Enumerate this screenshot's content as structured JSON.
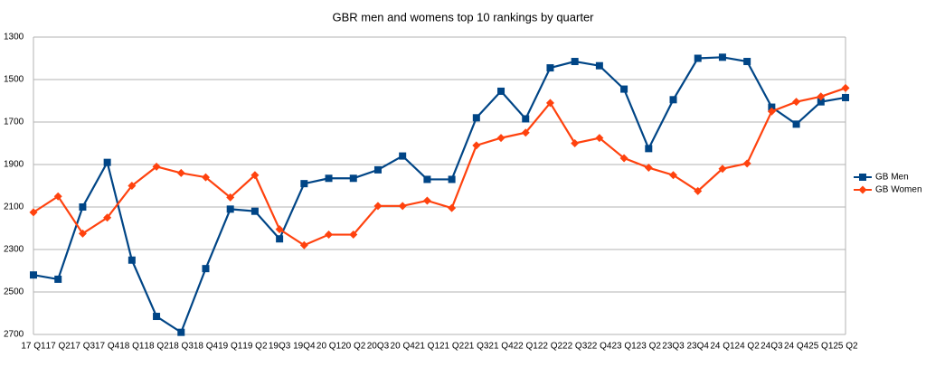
{
  "chart_data": {
    "type": "line",
    "title": "GBR men and womens top 10 rankings by quarter",
    "categories": [
      "17 Q1",
      "17 Q2",
      "17 Q3",
      "17 Q4",
      "18 Q1",
      "18 Q2",
      "18 Q3",
      "18 Q4",
      "19 Q1",
      "19 Q2",
      "19Q3",
      "19Q4",
      "20 Q1",
      "20 Q2",
      "20Q3",
      "20 Q4",
      "21 Q1",
      "21 Q2",
      "21 Q3",
      "21 Q4",
      "22 Q1",
      "22 Q2",
      "22 Q3",
      "22 Q4",
      "23 Q1",
      "23 Q2",
      "23Q3",
      "23Q4",
      "24 Q1",
      "24 Q2",
      "24Q3",
      "24 Q4",
      "25 Q1",
      "25 Q2"
    ],
    "series": [
      {
        "name": "GB Men",
        "color": "#004586",
        "marker": "square",
        "values": [
          2420,
          2440,
          2100,
          1890,
          2350,
          2615,
          2690,
          2390,
          2110,
          2120,
          2250,
          1990,
          1965,
          1965,
          1925,
          1860,
          1970,
          1970,
          1680,
          1555,
          1685,
          1445,
          1415,
          1435,
          1545,
          1825,
          1595,
          1400,
          1395,
          1415,
          1630,
          1710,
          1605,
          1585
        ]
      },
      {
        "name": "GB Women",
        "color": "#ff420e",
        "marker": "diamond",
        "values": [
          2125,
          2050,
          2225,
          2150,
          2000,
          1910,
          1940,
          1960,
          2055,
          1950,
          2205,
          2280,
          2230,
          2230,
          2095,
          2095,
          2070,
          2105,
          1810,
          1775,
          1750,
          1610,
          1800,
          1775,
          1870,
          1915,
          1950,
          2025,
          1920,
          1895,
          1650,
          1605,
          1580,
          1540
        ]
      }
    ],
    "ylim": [
      1300,
      2700
    ],
    "y_inverted": true,
    "yticks": [
      1300,
      1500,
      1700,
      1900,
      2100,
      2300,
      2500,
      2700
    ],
    "grid": true,
    "legend": "right"
  }
}
